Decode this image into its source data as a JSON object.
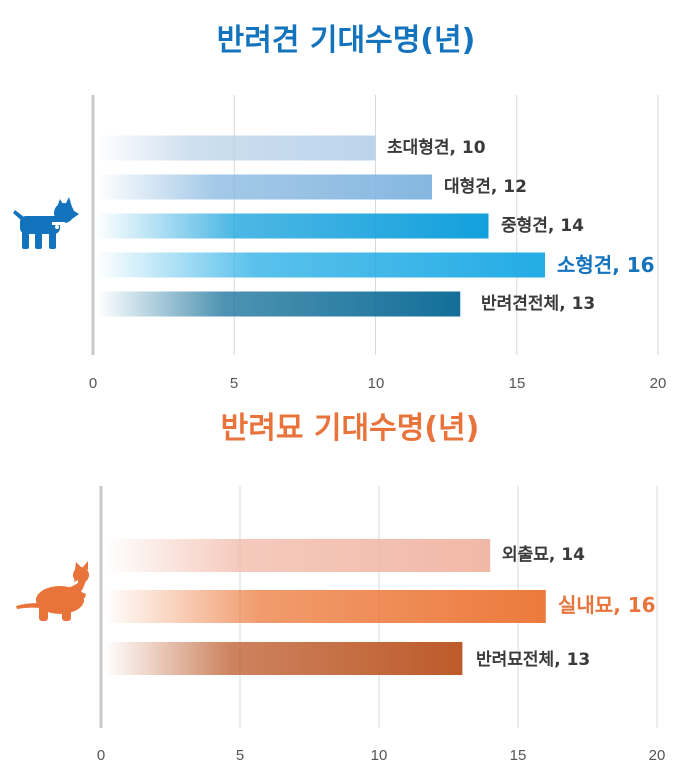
{
  "colors": {
    "dog_accent": "#1473bd",
    "cat_accent": "#e8743b",
    "grid": "#d9d9d9",
    "axis": "#c8c8c8",
    "label_text": "#3a3a3a",
    "tick_text": "#555555"
  },
  "chart_data": [
    {
      "type": "bar",
      "orientation": "horizontal",
      "title": "반려견 기대수명(년)",
      "icon": "dog-icon",
      "categories": [
        "초대형견",
        "대형견",
        "중형견",
        "소형견",
        "반려견전체"
      ],
      "values": [
        10,
        12,
        14,
        16,
        13
      ],
      "labels": [
        "초대형견, 10",
        "대형견, 12",
        "중형견, 14",
        "소형견, 16",
        "반려견전체, 13"
      ],
      "highlight_index": 3,
      "bar_colors": [
        "#bcd4ea",
        "#86b7e0",
        "#12a0dc",
        "#23ace5",
        "#136f99"
      ],
      "xlim": [
        0,
        20
      ],
      "xticks": [
        "0",
        "5",
        "10",
        "15",
        "20"
      ],
      "grid": true
    },
    {
      "type": "bar",
      "orientation": "horizontal",
      "title": "반려묘 기대수명(년)",
      "icon": "cat-icon",
      "categories": [
        "외출묘",
        "실내묘",
        "반려묘전체"
      ],
      "values": [
        14,
        16,
        13
      ],
      "labels": [
        "외출묘, 14",
        "실내묘, 16",
        "반려묘전체, 13"
      ],
      "highlight_index": 1,
      "bar_colors": [
        "#f1b8a7",
        "#ec7a3c",
        "#bd5a2a"
      ],
      "xlim": [
        0,
        20
      ],
      "xticks": [
        "0",
        "5",
        "10",
        "15",
        "20"
      ],
      "grid": true
    }
  ]
}
